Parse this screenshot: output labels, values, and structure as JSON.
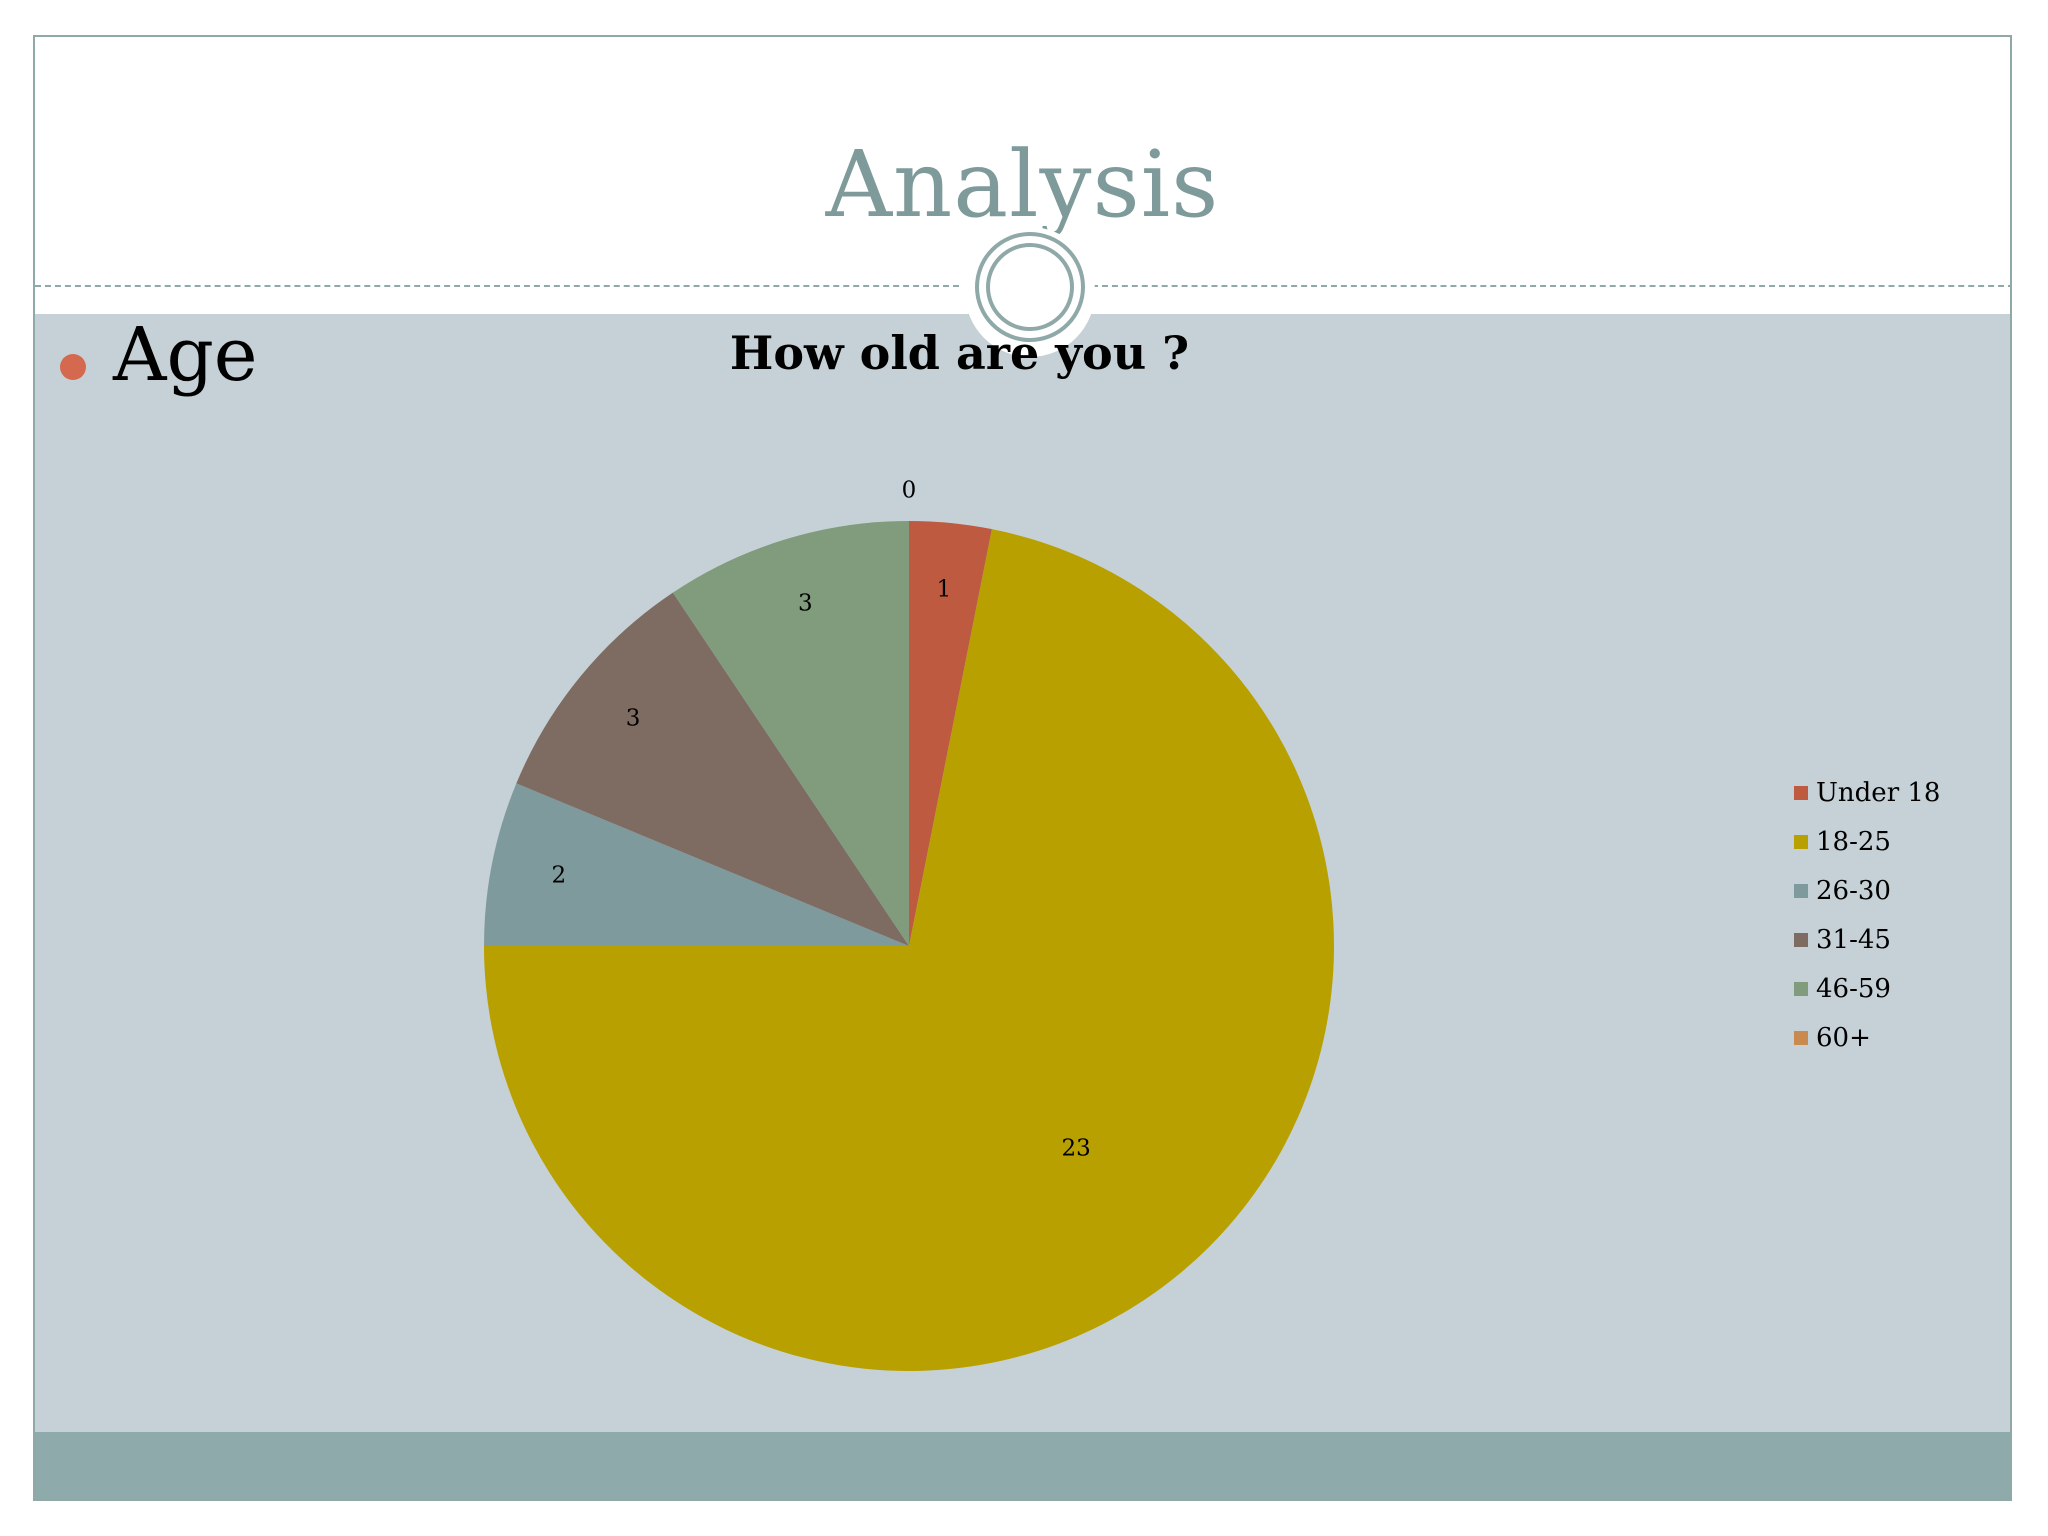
{
  "slide": {
    "title": "Analysis",
    "bullet": "Age",
    "colors": {
      "title": "#7f9a9a",
      "content_band": "#c5d1d6",
      "footer_band": "#8eaaab",
      "bullet": "#d4694f",
      "rule": "#8fa8a8"
    }
  },
  "chart_data": {
    "type": "pie",
    "title": "How old are you ?",
    "categories": [
      "Under 18",
      "18-25",
      "26-30",
      "31-45",
      "46-59",
      "60+"
    ],
    "values": [
      1,
      23,
      2,
      3,
      3,
      0
    ],
    "colors": [
      "#bd5a40",
      "#b8a000",
      "#7f9a9c",
      "#7e6c62",
      "#809c7c",
      "#c98a50"
    ],
    "data_labels": [
      "1",
      "23",
      "2",
      "3",
      "3",
      "0"
    ],
    "start_angle": "12 o'clock",
    "direction": "clockwise",
    "legend_position": "right"
  }
}
